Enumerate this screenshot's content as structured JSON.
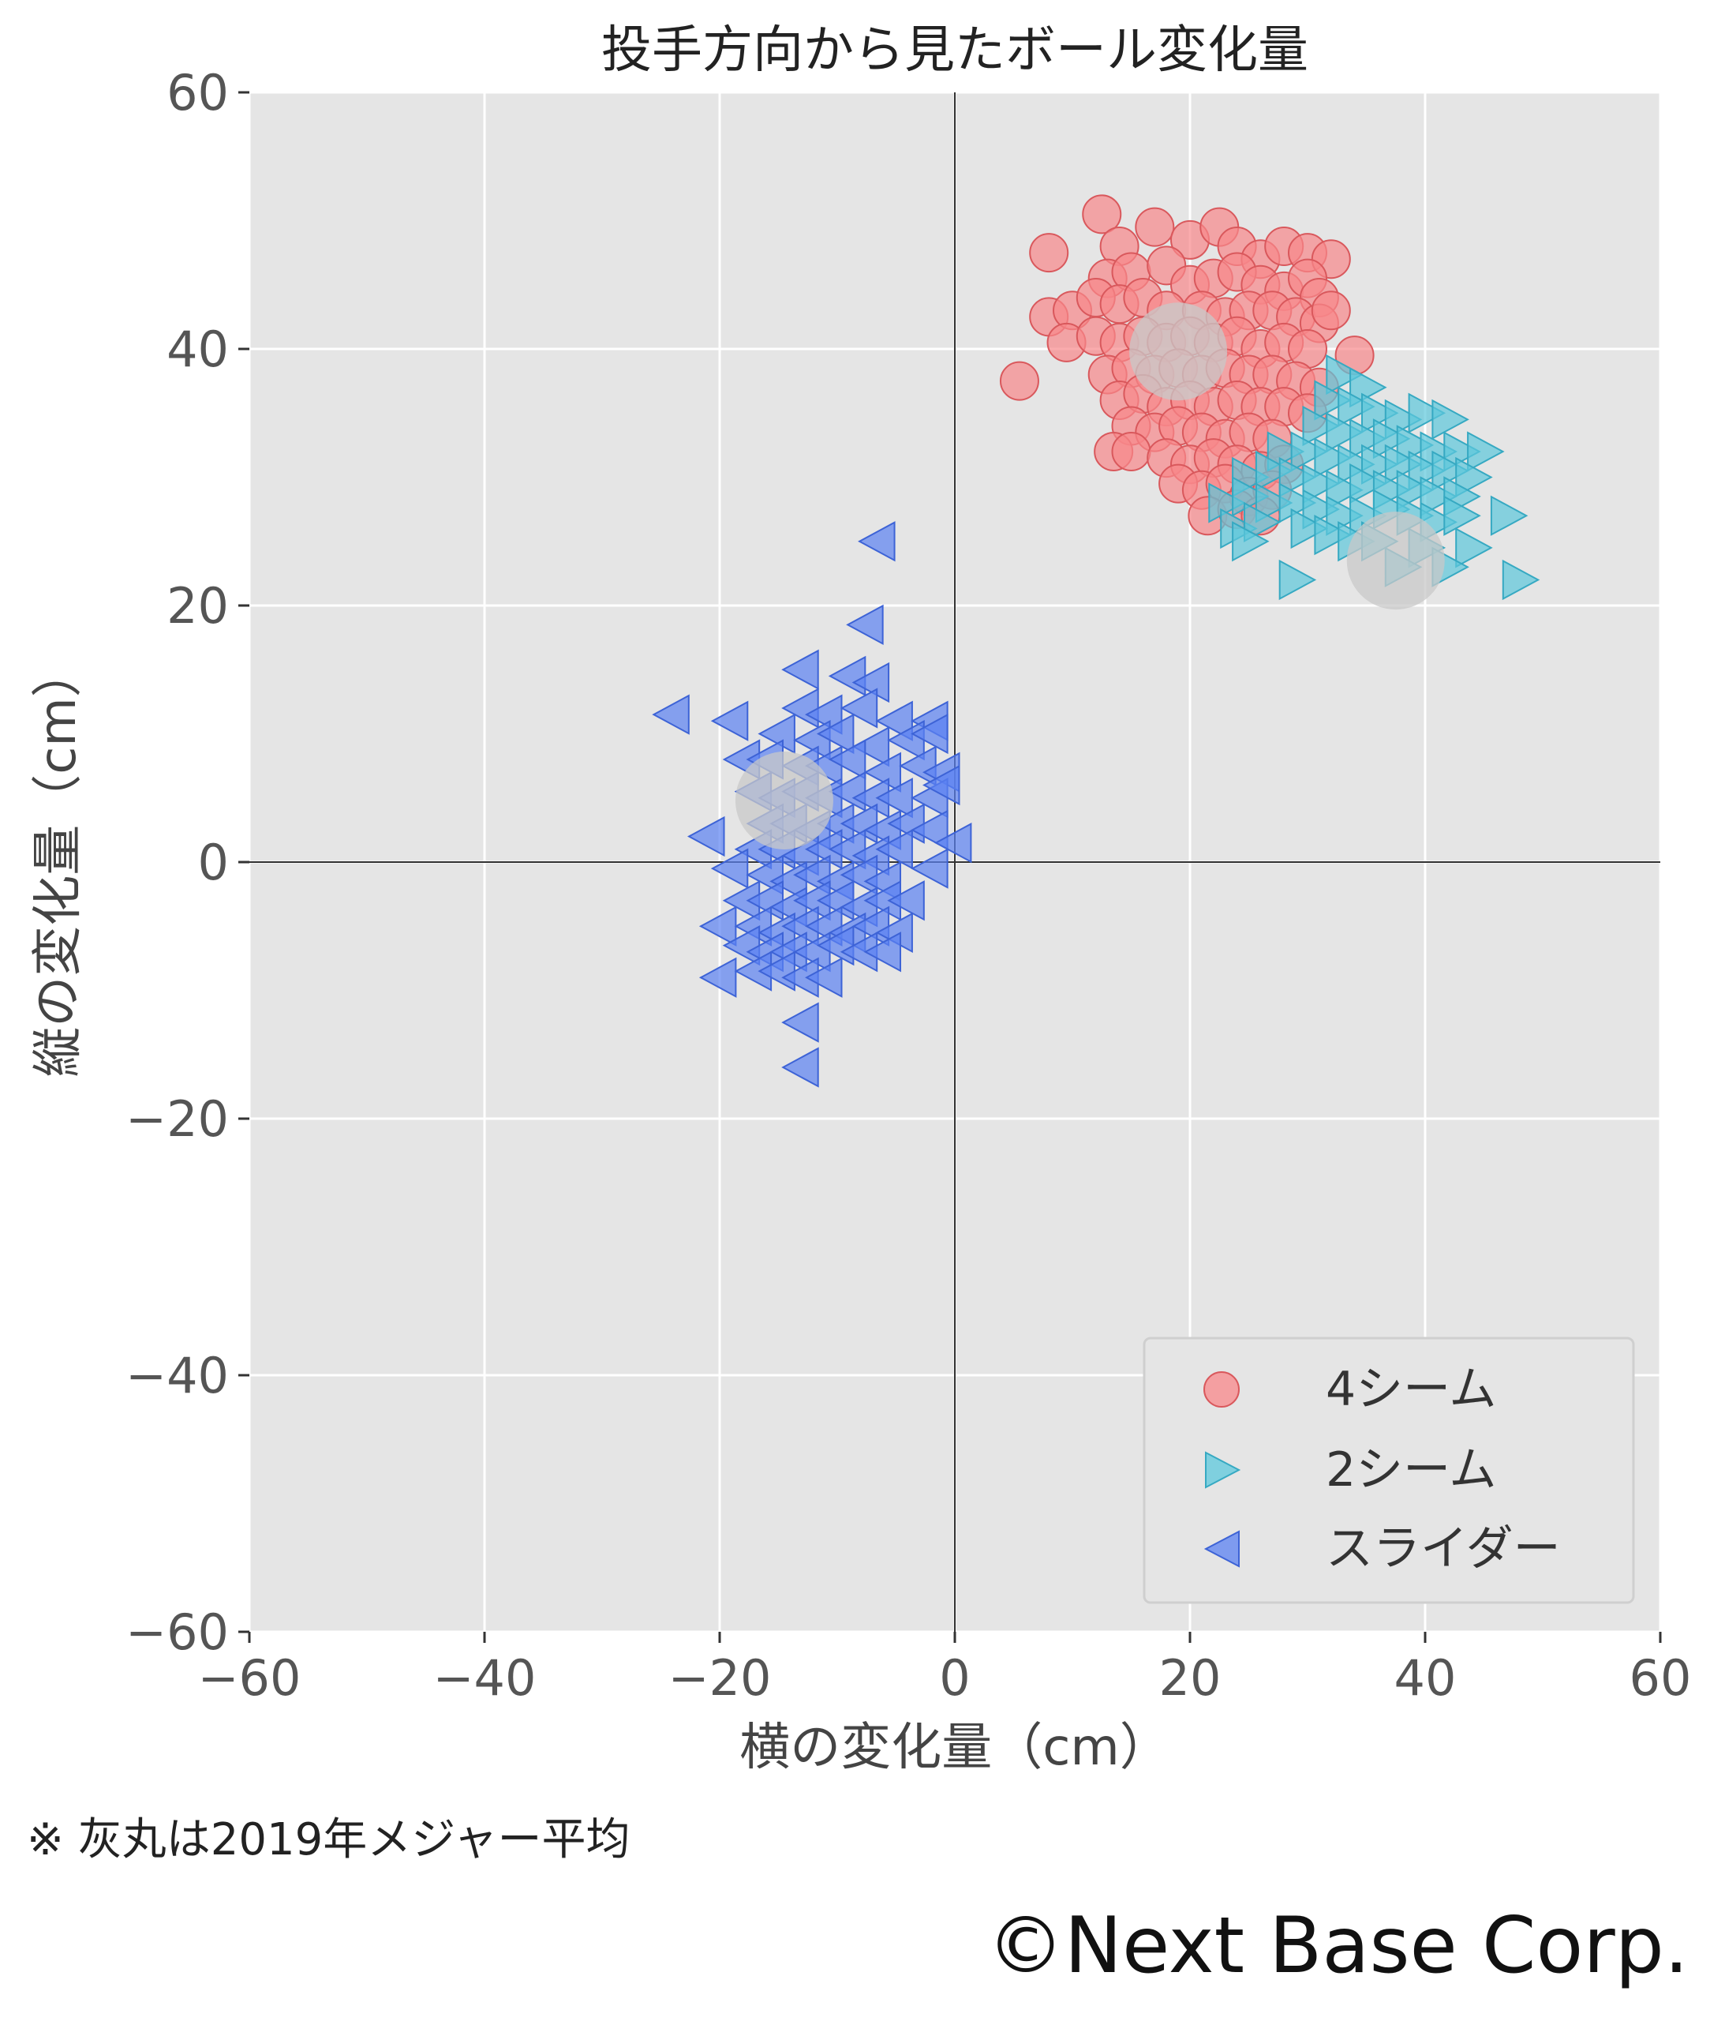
{
  "chart_data": {
    "type": "scatter",
    "title": "投手方向から見たボール変化量",
    "xlabel": "横の変化量（cm）",
    "ylabel": "縦の変化量（cm）",
    "xlim": [
      -60,
      60
    ],
    "ylim": [
      -60,
      60
    ],
    "xticks": [
      -60,
      -40,
      -20,
      0,
      20,
      40,
      60
    ],
    "yticks": [
      -60,
      -40,
      -20,
      0,
      20,
      40,
      60
    ],
    "xtick_labels": [
      "−60",
      "−40",
      "−20",
      "0",
      "20",
      "40",
      "60"
    ],
    "ytick_labels": [
      "−60",
      "−40",
      "−20",
      "0",
      "20",
      "40",
      "60"
    ],
    "grid": true,
    "legend_position": "bottom-right",
    "background_color": "#e5e5e5",
    "series": [
      {
        "name": "4シーム",
        "marker": "circle",
        "color": "#f8878a",
        "edge_color": "#d9585c",
        "points": [
          [
            8,
            47.5
          ],
          [
            12.5,
            50.5
          ],
          [
            14,
            48
          ],
          [
            17,
            49.5
          ],
          [
            20,
            48.5
          ],
          [
            22.5,
            49.5
          ],
          [
            24,
            48
          ],
          [
            26,
            47
          ],
          [
            28,
            48
          ],
          [
            30,
            47.5
          ],
          [
            32,
            47
          ],
          [
            13,
            45.5
          ],
          [
            15,
            46
          ],
          [
            18,
            46.5
          ],
          [
            20,
            45
          ],
          [
            22,
            45.5
          ],
          [
            24,
            46
          ],
          [
            26,
            45
          ],
          [
            28,
            44.5
          ],
          [
            30,
            45.5
          ],
          [
            31,
            44
          ],
          [
            8,
            42.5
          ],
          [
            10,
            43
          ],
          [
            12,
            44
          ],
          [
            14,
            43.5
          ],
          [
            16,
            44
          ],
          [
            18,
            43
          ],
          [
            21,
            43
          ],
          [
            23,
            42.5
          ],
          [
            25,
            43
          ],
          [
            27,
            43
          ],
          [
            29,
            42.5
          ],
          [
            31,
            42
          ],
          [
            32,
            43
          ],
          [
            9.5,
            40.5
          ],
          [
            12,
            41
          ],
          [
            14,
            40.5
          ],
          [
            16,
            41
          ],
          [
            18,
            40.5
          ],
          [
            20,
            41
          ],
          [
            22,
            40.5
          ],
          [
            24,
            41
          ],
          [
            26,
            40
          ],
          [
            28,
            40.5
          ],
          [
            30,
            40
          ],
          [
            34,
            39.5
          ],
          [
            5.5,
            37.5
          ],
          [
            13,
            38
          ],
          [
            15,
            38.5
          ],
          [
            17,
            38
          ],
          [
            19,
            38.5
          ],
          [
            21,
            38
          ],
          [
            23,
            38.5
          ],
          [
            25,
            38
          ],
          [
            27,
            38
          ],
          [
            29,
            37.5
          ],
          [
            31,
            37
          ],
          [
            14,
            36
          ],
          [
            16,
            36.5
          ],
          [
            18,
            35.5
          ],
          [
            20,
            36
          ],
          [
            22,
            35.5
          ],
          [
            24,
            36
          ],
          [
            26,
            35.5
          ],
          [
            28,
            35.5
          ],
          [
            30,
            35
          ],
          [
            15,
            34
          ],
          [
            17,
            33.5
          ],
          [
            19,
            34
          ],
          [
            21,
            33.5
          ],
          [
            23,
            33
          ],
          [
            25,
            33.5
          ],
          [
            27,
            33
          ],
          [
            13.5,
            32
          ],
          [
            15,
            32
          ],
          [
            18,
            31.5
          ],
          [
            20,
            31
          ],
          [
            22,
            31.5
          ],
          [
            24,
            31
          ],
          [
            26,
            30.5
          ],
          [
            28,
            31
          ],
          [
            19,
            29.5
          ],
          [
            21,
            29
          ],
          [
            23,
            29.5
          ],
          [
            25,
            28.5
          ],
          [
            27,
            29
          ],
          [
            21.5,
            27
          ],
          [
            24,
            27.5
          ],
          [
            26,
            27
          ]
        ]
      },
      {
        "name": "2シーム",
        "marker": "triangle-right",
        "color": "#5cc8dc",
        "edge_color": "#36a9c2",
        "points": [
          [
            33,
            38
          ],
          [
            35,
            37
          ],
          [
            32,
            36
          ],
          [
            34,
            35.5
          ],
          [
            36,
            35
          ],
          [
            38,
            34.5
          ],
          [
            40,
            35
          ],
          [
            42,
            34.5
          ],
          [
            31,
            34
          ],
          [
            33,
            33.5
          ],
          [
            35,
            33
          ],
          [
            37,
            33
          ],
          [
            39,
            32.5
          ],
          [
            41,
            32
          ],
          [
            43,
            32
          ],
          [
            45,
            32
          ],
          [
            28,
            32
          ],
          [
            30,
            32
          ],
          [
            32,
            31.5
          ],
          [
            34,
            31
          ],
          [
            36,
            31
          ],
          [
            38,
            31
          ],
          [
            40,
            30.5
          ],
          [
            42,
            30.5
          ],
          [
            44,
            30
          ],
          [
            25,
            30
          ],
          [
            27,
            30.5
          ],
          [
            29,
            30
          ],
          [
            31,
            29.5
          ],
          [
            33,
            29
          ],
          [
            35,
            29.5
          ],
          [
            37,
            29
          ],
          [
            39,
            29
          ],
          [
            41,
            28.5
          ],
          [
            43,
            28.5
          ],
          [
            23,
            28
          ],
          [
            25,
            28.5
          ],
          [
            27,
            28
          ],
          [
            29,
            28
          ],
          [
            31,
            27.5
          ],
          [
            33,
            27
          ],
          [
            35,
            27
          ],
          [
            37,
            27.5
          ],
          [
            39,
            27
          ],
          [
            41,
            26.5
          ],
          [
            43,
            27
          ],
          [
            47,
            27
          ],
          [
            24,
            26
          ],
          [
            26,
            26.5
          ],
          [
            30,
            26
          ],
          [
            32,
            25.5
          ],
          [
            34,
            25
          ],
          [
            36,
            25
          ],
          [
            40,
            24.5
          ],
          [
            44,
            24.5
          ],
          [
            25,
            25
          ],
          [
            29,
            22
          ],
          [
            38,
            23
          ],
          [
            42,
            23
          ],
          [
            48,
            22
          ]
        ]
      },
      {
        "name": "スライダー",
        "marker": "triangle-left",
        "color": "#5b82f2",
        "edge_color": "#3d63d6",
        "points": [
          [
            -6.5,
            25
          ],
          [
            -7.5,
            18.5
          ],
          [
            -13,
            15
          ],
          [
            -9,
            14.5
          ],
          [
            -7,
            14
          ],
          [
            -24,
            11.5
          ],
          [
            -19,
            11
          ],
          [
            -13,
            12
          ],
          [
            -11,
            11.5
          ],
          [
            -8,
            12
          ],
          [
            -5,
            11
          ],
          [
            -2,
            11
          ],
          [
            -15,
            10
          ],
          [
            -12,
            9.5
          ],
          [
            -10,
            10
          ],
          [
            -7,
            9
          ],
          [
            -4,
            9.5
          ],
          [
            -2,
            10
          ],
          [
            -18,
            8
          ],
          [
            -16,
            8
          ],
          [
            -13,
            7.5
          ],
          [
            -11,
            7.5
          ],
          [
            -9,
            8
          ],
          [
            -6,
            7
          ],
          [
            -3,
            7.5
          ],
          [
            -1,
            7
          ],
          [
            -17,
            5.5
          ],
          [
            -15,
            5
          ],
          [
            -13,
            5.5
          ],
          [
            -11,
            5
          ],
          [
            -9,
            5.5
          ],
          [
            -7,
            5
          ],
          [
            -5,
            5
          ],
          [
            -2,
            5
          ],
          [
            -1,
            6
          ],
          [
            -16,
            3
          ],
          [
            -14,
            3
          ],
          [
            -12,
            2.5
          ],
          [
            -10,
            3
          ],
          [
            -8,
            3
          ],
          [
            -6,
            2.5
          ],
          [
            -4,
            3
          ],
          [
            -2,
            2.5
          ],
          [
            -21,
            2
          ],
          [
            -17,
            1
          ],
          [
            -15,
            1
          ],
          [
            -13,
            0.5
          ],
          [
            -11,
            1
          ],
          [
            -9,
            1
          ],
          [
            -7,
            0.5
          ],
          [
            -5,
            1
          ],
          [
            0,
            1.5
          ],
          [
            -19,
            -0.5
          ],
          [
            -16,
            -1
          ],
          [
            -14,
            -1.5
          ],
          [
            -12,
            -1
          ],
          [
            -10,
            -1.5
          ],
          [
            -8,
            -1
          ],
          [
            -6,
            -1.5
          ],
          [
            -2,
            -0.5
          ],
          [
            -18,
            -3
          ],
          [
            -16,
            -3
          ],
          [
            -14,
            -3.5
          ],
          [
            -12,
            -3
          ],
          [
            -10,
            -3
          ],
          [
            -8,
            -3.5
          ],
          [
            -6,
            -3
          ],
          [
            -4,
            -3
          ],
          [
            -20,
            -5
          ],
          [
            -17,
            -5
          ],
          [
            -15,
            -5.5
          ],
          [
            -13,
            -5
          ],
          [
            -11,
            -5
          ],
          [
            -9,
            -5.5
          ],
          [
            -7,
            -5
          ],
          [
            -5,
            -5.5
          ],
          [
            -18,
            -6.5
          ],
          [
            -16,
            -7
          ],
          [
            -14,
            -7
          ],
          [
            -12,
            -7
          ],
          [
            -10,
            -6.5
          ],
          [
            -8,
            -7
          ],
          [
            -6,
            -7
          ],
          [
            -20,
            -9
          ],
          [
            -17,
            -8.5
          ],
          [
            -15,
            -8.5
          ],
          [
            -13,
            -9
          ],
          [
            -11,
            -9
          ],
          [
            -13,
            -12.5
          ],
          [
            -13,
            -16
          ]
        ]
      }
    ],
    "average_markers": {
      "color": "#c8c8c8",
      "points": [
        [
          -14.5,
          4.8
        ],
        [
          19,
          39.8
        ],
        [
          37.5,
          23.5
        ]
      ]
    }
  },
  "footnote": "※ 灰丸は2019年メジャー平均",
  "credit": "©Next Base Corp."
}
